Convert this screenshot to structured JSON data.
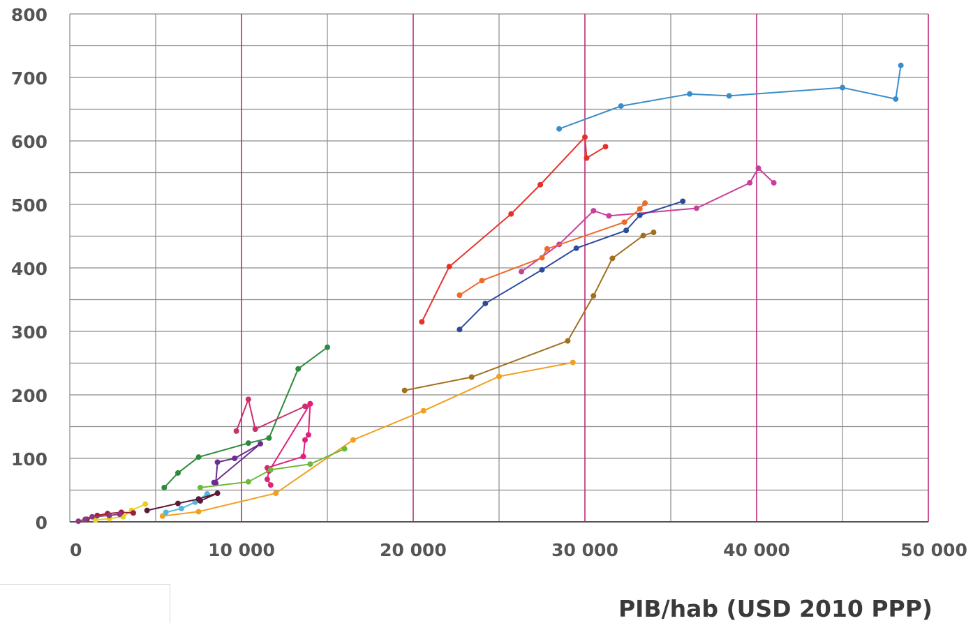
{
  "chart_data": {
    "type": "scatter",
    "title": "",
    "xlabel": "PIB/hab (USD 2010 PPP)",
    "ylabel": "",
    "xlim": [
      0,
      50000
    ],
    "ylim": [
      0,
      800
    ],
    "x_ticks": [
      0,
      10000,
      20000,
      30000,
      40000,
      50000
    ],
    "x_tick_labels": [
      "0",
      "10 000",
      "20 000",
      "30 000",
      "40 000",
      "50 000"
    ],
    "y_ticks": [
      0,
      100,
      200,
      300,
      400,
      500,
      600,
      700,
      800
    ],
    "y_tick_labels": [
      "0",
      "100",
      "200",
      "300",
      "400",
      "500",
      "600",
      "700",
      "800"
    ],
    "grid": true,
    "x_minor_grid_step": 5000,
    "y_minor_grid_step": 50,
    "highlight_gridline_color": "#c0287a",
    "grid_color": "#8a8a8a",
    "series": [
      {
        "color": "#3a8dc8",
        "points": [
          [
            28500,
            619
          ],
          [
            32100,
            655
          ],
          [
            36100,
            674
          ],
          [
            38400,
            671
          ],
          [
            45000,
            684
          ],
          [
            48100,
            666
          ],
          [
            48400,
            719
          ]
        ]
      },
      {
        "color": "#e8302a",
        "points": [
          [
            20500,
            315
          ],
          [
            22100,
            402
          ],
          [
            25700,
            485
          ],
          [
            27400,
            531
          ],
          [
            30000,
            606
          ],
          [
            30100,
            573
          ],
          [
            31200,
            591
          ]
        ]
      },
      {
        "color": "#c83f9c",
        "points": [
          [
            26300,
            394
          ],
          [
            28500,
            437
          ],
          [
            30500,
            490
          ],
          [
            31400,
            482
          ],
          [
            36500,
            494
          ],
          [
            39600,
            534
          ],
          [
            40100,
            557
          ],
          [
            41000,
            534
          ]
        ]
      },
      {
        "color": "#2c4b9e",
        "points": [
          [
            22700,
            303
          ],
          [
            24200,
            344
          ],
          [
            27500,
            397
          ],
          [
            29500,
            431
          ],
          [
            32400,
            459
          ],
          [
            33200,
            483
          ],
          [
            35700,
            505
          ]
        ]
      },
      {
        "color": "#ee6a2a",
        "points": [
          [
            22700,
            357
          ],
          [
            24000,
            380
          ],
          [
            27500,
            416
          ],
          [
            27800,
            430
          ],
          [
            32300,
            472
          ],
          [
            33200,
            493
          ],
          [
            33500,
            502
          ]
        ]
      },
      {
        "color": "#a0701e",
        "points": [
          [
            19500,
            207
          ],
          [
            23400,
            228
          ],
          [
            29000,
            285
          ],
          [
            30500,
            356
          ],
          [
            31600,
            415
          ],
          [
            33400,
            451
          ],
          [
            34000,
            456
          ]
        ]
      },
      {
        "color": "#f0a020",
        "points": [
          [
            5400,
            9
          ],
          [
            7500,
            16
          ],
          [
            12000,
            45
          ],
          [
            16500,
            129
          ],
          [
            20600,
            175
          ],
          [
            25000,
            229
          ],
          [
            29300,
            251
          ]
        ]
      },
      {
        "color": "#2e8a3e",
        "points": [
          [
            5500,
            54
          ],
          [
            6300,
            77
          ],
          [
            7500,
            102
          ],
          [
            10400,
            124
          ],
          [
            11600,
            132
          ],
          [
            13300,
            241
          ],
          [
            15000,
            275
          ]
        ]
      },
      {
        "color": "#c8306e",
        "points": [
          [
            9700,
            143
          ],
          [
            10400,
            193
          ],
          [
            10800,
            146
          ],
          [
            13700,
            182
          ],
          [
            14000,
            186
          ]
        ]
      },
      {
        "color": "#e0207a",
        "points": [
          [
            11500,
            85
          ],
          [
            13600,
            103
          ],
          [
            13700,
            129
          ],
          [
            13900,
            137
          ],
          [
            14000,
            186
          ],
          [
            11600,
            80
          ],
          [
            11500,
            67
          ],
          [
            11700,
            58
          ]
        ]
      },
      {
        "color": "#6a2e90",
        "points": [
          [
            8500,
            61
          ],
          [
            8600,
            94
          ],
          [
            9600,
            100
          ],
          [
            11100,
            123
          ],
          [
            8400,
            62
          ]
        ]
      },
      {
        "color": "#6eb83a",
        "points": [
          [
            7600,
            54
          ],
          [
            10400,
            63
          ],
          [
            11700,
            82
          ],
          [
            14000,
            91
          ],
          [
            16000,
            115
          ]
        ]
      },
      {
        "color": "#50b8e0",
        "points": [
          [
            5600,
            15
          ],
          [
            6500,
            21
          ],
          [
            7300,
            31
          ],
          [
            8000,
            44
          ]
        ]
      },
      {
        "color": "#5a1a3a",
        "points": [
          [
            4500,
            18
          ],
          [
            6300,
            29
          ],
          [
            7500,
            36
          ],
          [
            8600,
            45
          ],
          [
            7600,
            33
          ]
        ]
      },
      {
        "color": "#e8d020",
        "points": [
          [
            1500,
            3
          ],
          [
            2300,
            5
          ],
          [
            3100,
            8
          ],
          [
            3600,
            18
          ],
          [
            4400,
            28
          ]
        ]
      },
      {
        "color": "#a02030",
        "points": [
          [
            1000,
            4
          ],
          [
            1600,
            10
          ],
          [
            2200,
            13
          ],
          [
            3000,
            15
          ],
          [
            3700,
            14
          ]
        ]
      },
      {
        "color": "#8a3a80",
        "points": [
          [
            500,
            1
          ],
          [
            900,
            4
          ],
          [
            1300,
            8
          ],
          [
            2300,
            10
          ],
          [
            2900,
            12
          ]
        ]
      }
    ]
  }
}
